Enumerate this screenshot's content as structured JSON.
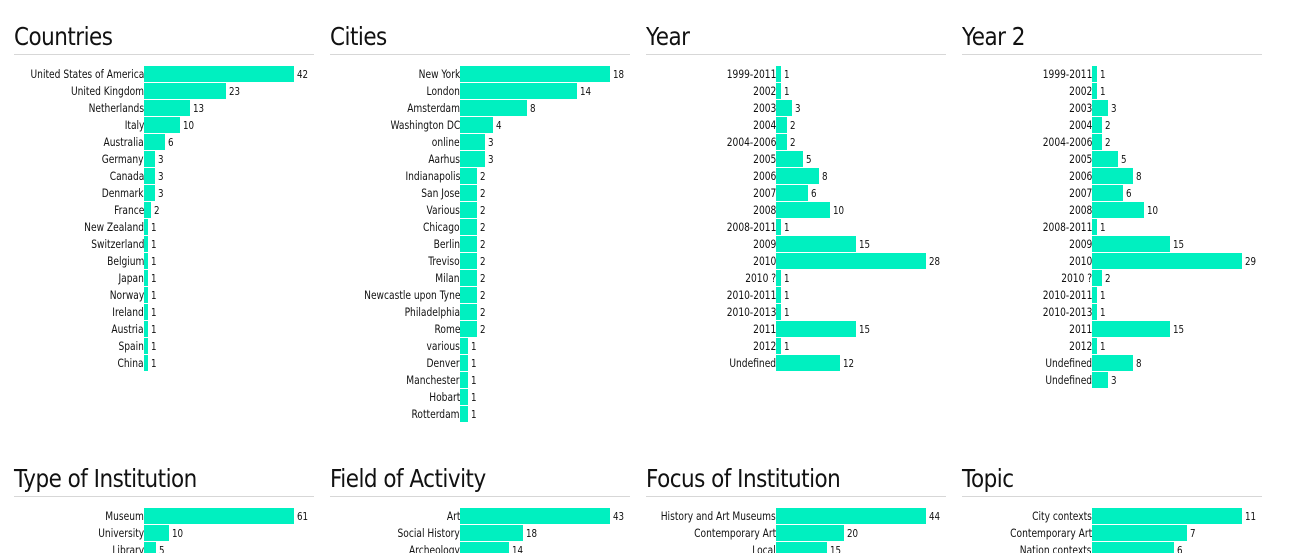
{
  "colors": {
    "bar": "#00f0c0"
  },
  "chart_data": [
    {
      "type": "bar",
      "title": "Countries",
      "max": 42,
      "categories": [
        "United States of America",
        "United Kingdom",
        "Netherlands",
        "Italy",
        "Australia",
        "Germany",
        "Canada",
        "Denmark",
        "France",
        "New Zealand",
        "Switzerland",
        "Belgium",
        "Japan",
        "Norway",
        "Ireland",
        "Austria",
        "Spain",
        "China"
      ],
      "values": [
        42,
        23,
        13,
        10,
        6,
        3,
        3,
        3,
        2,
        1,
        1,
        1,
        1,
        1,
        1,
        1,
        1,
        1
      ]
    },
    {
      "type": "bar",
      "title": "Cities",
      "max": 18,
      "categories": [
        "New York",
        "London",
        "Amsterdam",
        "Washington DC",
        "online",
        "Aarhus",
        "Indianapolis",
        "San Jose",
        "Various",
        "Chicago",
        "Berlin",
        "Treviso",
        "Milan",
        "Newcastle upon Tyne",
        "Philadelphia",
        "Rome",
        "various",
        "Denver",
        "Manchester",
        "Hobart",
        "Rotterdam"
      ],
      "values": [
        18,
        14,
        8,
        4,
        3,
        3,
        2,
        2,
        2,
        2,
        2,
        2,
        2,
        2,
        2,
        2,
        1,
        1,
        1,
        1,
        1
      ]
    },
    {
      "type": "bar",
      "title": "Year",
      "max": 28,
      "categories": [
        "1999-2011",
        "2002",
        "2003",
        "2004",
        "2004-2006",
        "2005",
        "2006",
        "2007",
        "2008",
        "2008-2011",
        "2009",
        "2010",
        "2010 ?",
        "2010-2011",
        "2010-2013",
        "2011",
        "2012",
        "Undefined"
      ],
      "values": [
        1,
        1,
        3,
        2,
        2,
        5,
        8,
        6,
        10,
        1,
        15,
        28,
        1,
        1,
        1,
        15,
        1,
        12
      ]
    },
    {
      "type": "bar",
      "title": "Year 2",
      "max": 29,
      "categories": [
        "1999-2011",
        "2002",
        "2003",
        "2004",
        "2004-2006",
        "2005",
        "2006",
        "2007",
        "2008",
        "2008-2011",
        "2009",
        "2010",
        "2010 ?",
        "2010-2011",
        "2010-2013",
        "2011",
        "2012",
        "Undefined",
        "Undefined"
      ],
      "values": [
        1,
        1,
        3,
        2,
        2,
        5,
        8,
        6,
        10,
        1,
        15,
        29,
        2,
        1,
        1,
        15,
        1,
        8,
        3
      ]
    },
    {
      "type": "bar",
      "title": "Type of Institution",
      "max": 61,
      "categories": [
        "Museum",
        "University",
        "Library"
      ],
      "values": [
        61,
        10,
        5
      ]
    },
    {
      "type": "bar",
      "title": "Field of Activity",
      "max": 43,
      "categories": [
        "Art",
        "Social History",
        "Archeology"
      ],
      "values": [
        43,
        18,
        14
      ]
    },
    {
      "type": "bar",
      "title": "Focus of Institution",
      "max": 44,
      "categories": [
        "History and Art Museums",
        "Contemporary Art",
        "Local"
      ],
      "values": [
        44,
        20,
        15
      ]
    },
    {
      "type": "bar",
      "title": "Topic",
      "max": 11,
      "categories": [
        "City contexts",
        "Contemporary Art",
        "Nation contexts"
      ],
      "values": [
        11,
        7,
        6
      ]
    }
  ]
}
